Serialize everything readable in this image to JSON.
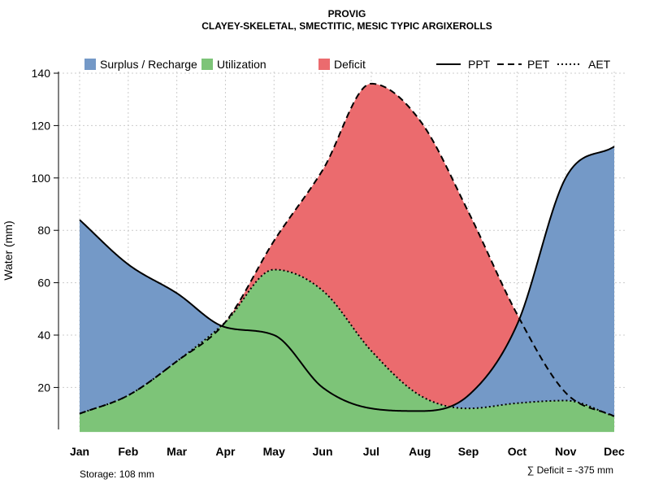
{
  "chart_data": {
    "type": "area",
    "title": "PROVIG",
    "subtitle": "CLAYEY-SKELETAL, SMECTITIC, MESIC TYPIC ARGIXEROLLS",
    "xlabel": "",
    "ylabel": "Water (mm)",
    "categories": [
      "Jan",
      "Feb",
      "Mar",
      "Apr",
      "May",
      "Jun",
      "Jul",
      "Aug",
      "Sep",
      "Oct",
      "Nov",
      "Dec"
    ],
    "ylim": [
      3,
      140
    ],
    "yticks": [
      20,
      40,
      60,
      80,
      100,
      120,
      140
    ],
    "grid": true,
    "series": [
      {
        "name": "PPT",
        "line": "solid",
        "values": [
          84,
          67,
          56,
          43,
          40,
          20,
          12,
          11,
          17,
          44,
          100,
          112
        ]
      },
      {
        "name": "PET",
        "line": "dashed",
        "values": [
          10,
          17,
          30,
          45,
          76,
          103,
          136,
          122,
          87,
          48,
          18,
          9
        ]
      },
      {
        "name": "AET",
        "line": "dotted",
        "values": [
          10,
          17,
          30,
          45,
          65,
          57,
          34,
          17,
          12,
          14,
          15,
          9
        ]
      }
    ],
    "areas": [
      {
        "name": "Surplus / Recharge",
        "color": "#7499c7"
      },
      {
        "name": "Utilization",
        "color": "#7dc478"
      },
      {
        "name": "Deficit",
        "color": "#eb6b6e"
      }
    ],
    "legend": [
      {
        "label": "Surplus / Recharge",
        "kind": "swatch",
        "color": "#7499c7"
      },
      {
        "label": "Utilization",
        "kind": "swatch",
        "color": "#7dc478"
      },
      {
        "label": "Deficit",
        "kind": "swatch",
        "color": "#eb6b6e"
      },
      {
        "label": "PPT",
        "kind": "line",
        "dash": "solid"
      },
      {
        "label": "PET",
        "kind": "line",
        "dash": "dashed"
      },
      {
        "label": "AET",
        "kind": "line",
        "dash": "dotted"
      }
    ],
    "annotations": {
      "storage": "Storage: 108 mm",
      "deficit": "∑ Deficit = -375 mm"
    }
  }
}
